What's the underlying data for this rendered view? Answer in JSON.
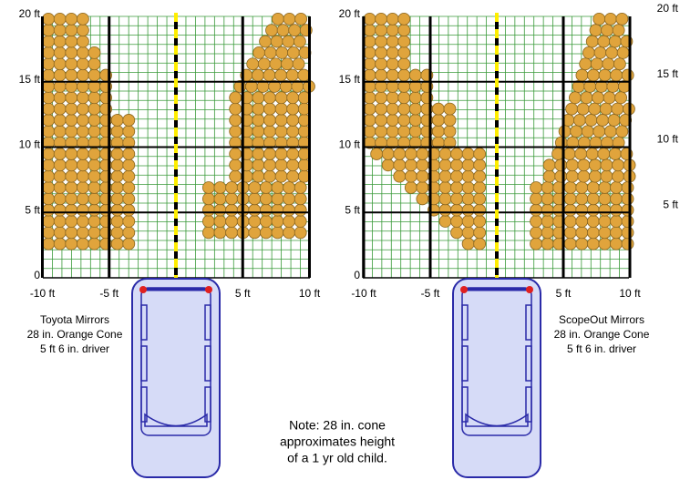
{
  "panels": [
    {
      "x_labels": [
        "-10 ft",
        "-5 ft",
        "5 ft",
        "10 ft"
      ],
      "y_labels": [
        "0",
        "5 ft",
        "10 ft",
        "15 ft",
        "20 ft"
      ],
      "caption": [
        "Toyota Mirrors",
        "28 in. Orange Cone",
        "5 ft 6 in. driver"
      ]
    },
    {
      "x_labels": [
        "-10 ft",
        "-5 ft",
        "5 ft",
        "10 ft"
      ],
      "y_labels": [
        "0",
        "5 ft",
        "10 ft",
        "15 ft",
        "20 ft"
      ],
      "caption": [
        "ScopeOut Mirrors",
        "28 in. Orange Cone",
        "5 ft 6 in. driver"
      ]
    }
  ],
  "edge_labels": [
    "5 ft",
    "10 ft",
    "15 ft",
    "20 ft"
  ],
  "note": [
    "Note: 28 in. cone",
    "approximates height",
    "of a 1 yr old child."
  ]
}
